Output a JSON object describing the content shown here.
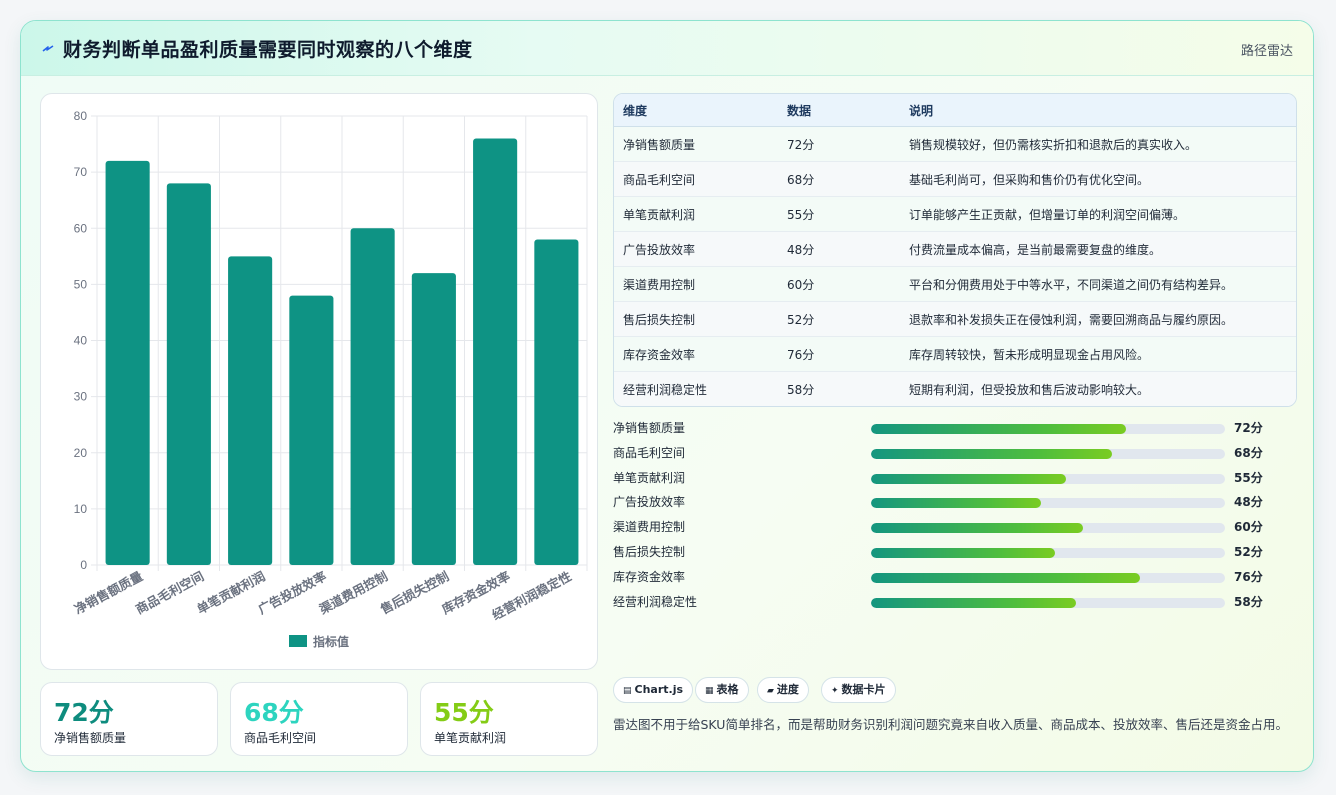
{
  "header": {
    "title": "财务判断单品盈利质量需要同时观察的八个维度",
    "tag": "路径雷达"
  },
  "chart_data": {
    "type": "bar",
    "categories": [
      "净销售额质量",
      "商品毛利空间",
      "单笔贡献利润",
      "广告投放效率",
      "渠道费用控制",
      "售后损失控制",
      "库存资金效率",
      "经营利润稳定性"
    ],
    "series": [
      {
        "name": "指标值",
        "values": [
          72,
          68,
          55,
          48,
          60,
          52,
          76,
          58
        ]
      }
    ],
    "ylim": [
      0,
      80
    ],
    "yticks": [
      "0",
      "10",
      "20",
      "30",
      "40",
      "50",
      "60",
      "70",
      "80"
    ],
    "grid": true,
    "legend": "bottom",
    "color": "#0e9384"
  },
  "kpis": [
    {
      "value": "72分",
      "label": "净销售额质量",
      "color": "#0e8c7e"
    },
    {
      "value": "68分",
      "label": "商品毛利空间",
      "color": "#2dd4bf"
    },
    {
      "value": "55分",
      "label": "单笔贡献利润",
      "color": "#84cc16"
    }
  ],
  "table": {
    "headers": [
      "维度",
      "数据",
      "说明"
    ],
    "rows": [
      [
        "净销售额质量",
        "72分",
        "销售规模较好，但仍需核实折扣和退款后的真实收入。"
      ],
      [
        "商品毛利空间",
        "68分",
        "基础毛利尚可，但采购和售价仍有优化空间。"
      ],
      [
        "单笔贡献利润",
        "55分",
        "订单能够产生正贡献，但增量订单的利润空间偏薄。"
      ],
      [
        "广告投放效率",
        "48分",
        "付费流量成本偏高，是当前最需要复盘的维度。"
      ],
      [
        "渠道费用控制",
        "60分",
        "平台和分佣费用处于中等水平，不同渠道之间仍有结构差异。"
      ],
      [
        "售后损失控制",
        "52分",
        "退款率和补发损失正在侵蚀利润，需要回溯商品与履约原因。"
      ],
      [
        "库存资金效率",
        "76分",
        "库存周转较快，暂未形成明显现金占用风险。"
      ],
      [
        "经营利润稳定性",
        "58分",
        "短期有利润，但受投放和售后波动影响较大。"
      ]
    ]
  },
  "progress": [
    {
      "label": "净销售额质量",
      "value": 72,
      "text": "72分"
    },
    {
      "label": "商品毛利空间",
      "value": 68,
      "text": "68分"
    },
    {
      "label": "单笔贡献利润",
      "value": 55,
      "text": "55分"
    },
    {
      "label": "广告投放效率",
      "value": 48,
      "text": "48分"
    },
    {
      "label": "渠道费用控制",
      "value": 60,
      "text": "60分"
    },
    {
      "label": "售后损失控制",
      "value": 52,
      "text": "52分"
    },
    {
      "label": "库存资金效率",
      "value": 76,
      "text": "76分"
    },
    {
      "label": "经营利润稳定性",
      "value": 58,
      "text": "58分"
    }
  ],
  "chips": [
    {
      "icon": "▤",
      "label": "Chart.js"
    },
    {
      "icon": "▦",
      "label": "表格"
    },
    {
      "icon": "▰",
      "label": "进度"
    },
    {
      "icon": "✦",
      "label": "数据卡片"
    }
  ],
  "note": "雷达图不用于给SKU简单排名，而是帮助财务识别利润问题究竟来自收入质量、商品成本、投放效率、售后还是资金占用。"
}
